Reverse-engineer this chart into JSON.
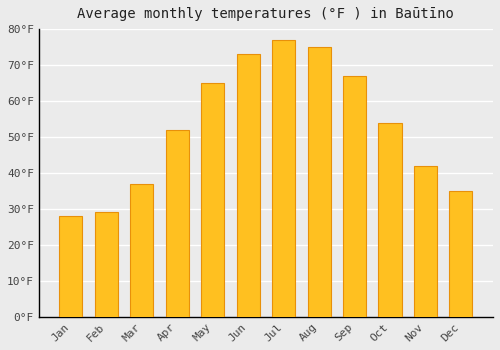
{
  "title": "Average monthly temperatures (°F ) in Baūtīno",
  "months": [
    "Jan",
    "Feb",
    "Mar",
    "Apr",
    "May",
    "Jun",
    "Jul",
    "Aug",
    "Sep",
    "Oct",
    "Nov",
    "Dec"
  ],
  "values": [
    28,
    29,
    37,
    52,
    65,
    73,
    77,
    75,
    67,
    54,
    42,
    35
  ],
  "bar_color_main": "#FFC020",
  "bar_color_edge": "#E8900A",
  "background_color": "#EBEBEB",
  "plot_bg_color": "#EBEBEB",
  "grid_color": "#FFFFFF",
  "ylim": [
    0,
    80
  ],
  "yticks": [
    0,
    10,
    20,
    30,
    40,
    50,
    60,
    70,
    80
  ],
  "ytick_labels": [
    "0°F",
    "10°F",
    "20°F",
    "30°F",
    "40°F",
    "50°F",
    "60°F",
    "70°F",
    "80°F"
  ],
  "title_fontsize": 10,
  "tick_fontsize": 8,
  "bar_width": 0.65
}
